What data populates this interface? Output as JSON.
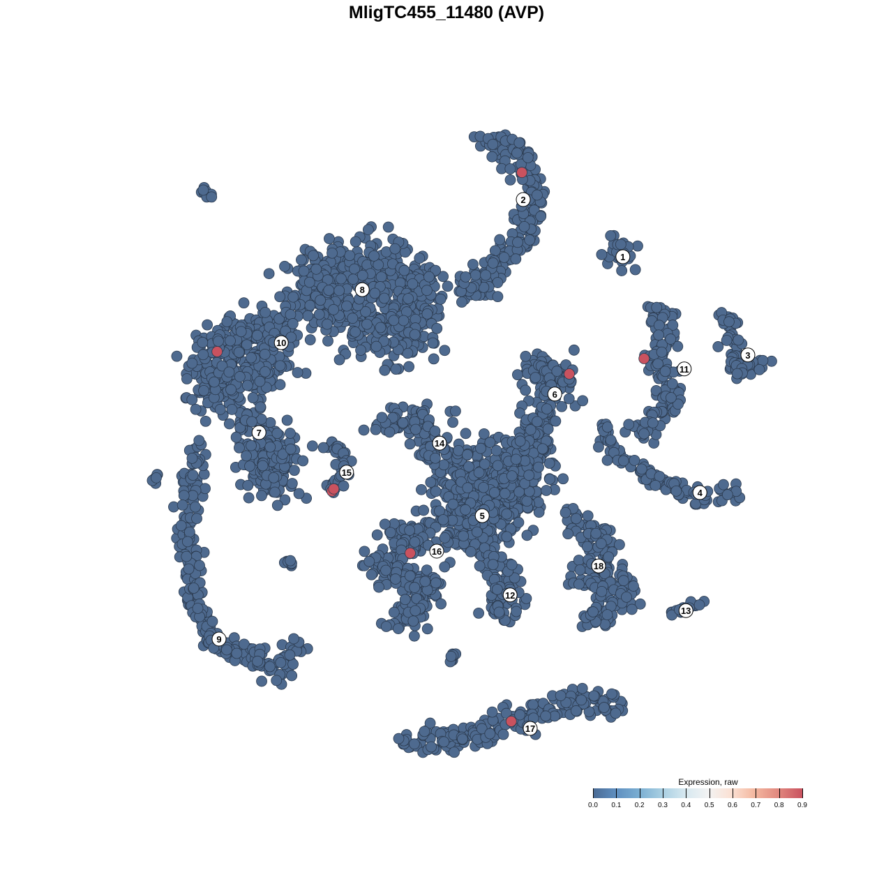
{
  "chart_data": {
    "type": "scatter",
    "title": "MligTC455_11480 (AVP)",
    "xlim": [
      -80,
      80
    ],
    "ylim": [
      -80,
      80
    ],
    "grid": false,
    "axes_visible": false,
    "point_color_default": "#4e6a8f",
    "point_color_high": "#c9525f",
    "legend": {
      "title": "Expression, raw",
      "placement": "bottom-right",
      "ticks": [
        "0.0",
        "0.1",
        "0.2",
        "0.3",
        "0.4",
        "0.5",
        "0.6",
        "0.7",
        "0.8",
        "0.9"
      ],
      "range": [
        0,
        0.9
      ]
    },
    "clusters": [
      {
        "label": "1",
        "label_pos": [
          31.6,
          34
        ],
        "path": [
          [
            30.6,
            34.4
          ],
          [
            30.6,
            35
          ]
        ],
        "spread": 3
      },
      {
        "label": "2",
        "label_pos": [
          13.75,
          44.25
        ],
        "path": [
          [
            6.25,
            55
          ],
          [
            12.5,
            53.1
          ],
          [
            16.25,
            45
          ],
          [
            13.75,
            37.5
          ],
          [
            8.75,
            32.5
          ],
          [
            6.25,
            28.75
          ],
          [
            2.5,
            28.1
          ]
        ],
        "spread": 1.8
      },
      {
        "label": "3",
        "label_pos": [
          54,
          16.4
        ],
        "path": [
          [
            48.75,
            24
          ],
          [
            51.25,
            21.25
          ],
          [
            51.9,
            13.75
          ],
          [
            57.5,
            15
          ]
        ],
        "spread": 1.2
      },
      {
        "label": "4",
        "label_pos": [
          45.4,
          -8.25
        ],
        "path": [
          [
            27.5,
            3.75
          ],
          [
            31.25,
            -2.5
          ],
          [
            38.75,
            -6.25
          ],
          [
            45,
            -9.4
          ],
          [
            51.9,
            -8.1
          ]
        ],
        "spread": 1.2
      },
      {
        "label": "5",
        "label_pos": [
          6.4,
          -12.4
        ],
        "path": [
          [
            2.5,
            -1.25
          ],
          [
            6.25,
            -12.5
          ],
          [
            13.75,
            -3.75
          ],
          [
            6.25,
            -12.5
          ],
          [
            0,
            -14
          ]
        ],
        "spread": 5
      },
      {
        "label": "6",
        "label_pos": [
          19.4,
          9.4
        ],
        "path": [
          [
            15,
            13.75
          ],
          [
            20,
            13.75
          ],
          [
            17.5,
            6.25
          ],
          [
            15,
            0
          ],
          [
            12.5,
            -5
          ]
        ],
        "spread": 2.5
      },
      {
        "label": "7",
        "label_pos": [
          -33.6,
          2.5
        ],
        "path": [
          [
            -36.25,
            5
          ],
          [
            -31.25,
            0
          ],
          [
            -30,
            -7.5
          ],
          [
            -35,
            -2.5
          ],
          [
            -27.5,
            -1.25
          ]
        ],
        "spread": 2.5
      },
      {
        "label": "8",
        "label_pos": [
          -15.1,
          28.1
        ],
        "path": [
          [
            -25,
            30
          ],
          [
            -15,
            32.5
          ],
          [
            -6.25,
            30
          ],
          [
            -6.25,
            20
          ],
          [
            -17.5,
            22.5
          ],
          [
            -25,
            30
          ]
        ],
        "spread": 4
      },
      {
        "label": "9",
        "label_pos": [
          -40.75,
          -34.5
        ],
        "path": [
          [
            -45,
            0
          ],
          [
            -46.25,
            -10
          ],
          [
            -46.25,
            -20
          ],
          [
            -45,
            -30
          ],
          [
            -41.25,
            -35
          ],
          [
            -35,
            -37.5
          ],
          [
            -30,
            -40
          ],
          [
            -26.25,
            -35
          ]
        ],
        "spread": 1.5
      },
      {
        "label": "10",
        "label_pos": [
          -29.6,
          18.6
        ],
        "path": [
          [
            -40,
            20
          ],
          [
            -30,
            21.25
          ],
          [
            -35,
            12.5
          ],
          [
            -42.5,
            10
          ],
          [
            -40,
            20
          ]
        ],
        "spread": 3.5
      },
      {
        "label": "11",
        "label_pos": [
          42.6,
          13.9
        ],
        "path": [
          [
            37.5,
            25
          ],
          [
            39.4,
            20
          ],
          [
            38.1,
            15
          ],
          [
            40.6,
            8.75
          ],
          [
            38.1,
            5
          ],
          [
            34.4,
            3.1
          ]
        ],
        "spread": 1.6
      },
      {
        "label": "12",
        "label_pos": [
          11.4,
          -26.6
        ],
        "path": [
          [
            7.5,
            -20
          ],
          [
            11.25,
            -26.25
          ],
          [
            8.75,
            -30
          ]
        ],
        "spread": 2.2
      },
      {
        "label": "13",
        "label_pos": [
          42.9,
          -29.4
        ],
        "path": [
          [
            40,
            -29.75
          ],
          [
            46.25,
            -27.75
          ]
        ],
        "spread": 0.8
      },
      {
        "label": "14",
        "label_pos": [
          -1.25,
          0.6
        ],
        "path": [
          [
            -12.5,
            3.75
          ],
          [
            -5,
            5
          ],
          [
            -2.5,
            0
          ],
          [
            -3.75,
            -2.5
          ]
        ],
        "spread": 1.8
      },
      {
        "label": "15",
        "label_pos": [
          -17.9,
          -4.6
        ],
        "path": [
          [
            -22.5,
            1.9
          ],
          [
            -18.75,
            -1.25
          ],
          [
            -18.1,
            -5
          ],
          [
            -20.6,
            -8.1
          ]
        ],
        "spread": 0.8
      },
      {
        "label": "16",
        "label_pos": [
          -1.75,
          -18.75
        ],
        "path": [
          [
            -10,
            -15
          ],
          [
            -5,
            -16.25
          ],
          [
            -12.5,
            -22.5
          ],
          [
            -2.5,
            -25
          ],
          [
            -8.75,
            -32.5
          ]
        ],
        "spread": 2.2
      },
      {
        "label": "17",
        "label_pos": [
          15,
          -50.5
        ],
        "path": [
          [
            -7.5,
            -53.1
          ],
          [
            2.5,
            -52.5
          ],
          [
            10,
            -50
          ],
          [
            20,
            -46.25
          ],
          [
            31.25,
            -46.25
          ]
        ],
        "spread": 1.8
      },
      {
        "label": "18",
        "label_pos": [
          27.25,
          -21.4
        ],
        "path": [
          [
            22.5,
            -13.75
          ],
          [
            28.75,
            -16.25
          ],
          [
            25,
            -23.75
          ],
          [
            32.5,
            -25
          ],
          [
            26.25,
            -31.25
          ]
        ],
        "spread": 2
      }
    ],
    "unlabeled_groups": [
      {
        "path": [
          [
            -43.75,
            45.6
          ],
          [
            -42.5,
            44.5
          ]
        ],
        "spread": 0.5
      },
      {
        "path": [
          [
            -52.5,
            -6.25
          ],
          [
            -51.5,
            -5.25
          ]
        ],
        "spread": 0.4
      },
      {
        "path": [
          [
            -28.75,
            -20.6
          ],
          [
            -27.5,
            -21
          ]
        ],
        "spread": 0.5
      },
      {
        "path": [
          [
            0.6,
            -38.75
          ],
          [
            1.5,
            -37.5
          ]
        ],
        "spread": 0.5
      }
    ],
    "high_expression_points": [
      {
        "x": 13.5,
        "y": 49.1,
        "value": 0.9
      },
      {
        "x": -41.1,
        "y": 17,
        "value": 0.9
      },
      {
        "x": 35.4,
        "y": 15.75,
        "value": 0.9
      },
      {
        "x": 22,
        "y": 13,
        "value": 0.9
      },
      {
        "x": -20.5,
        "y": -8,
        "value": 0.9
      },
      {
        "x": -20.2,
        "y": -7.6,
        "value": 0.9
      },
      {
        "x": -6.5,
        "y": -19.1,
        "value": 0.9
      },
      {
        "x": 11.6,
        "y": -49.25,
        "value": 0.9
      }
    ]
  }
}
